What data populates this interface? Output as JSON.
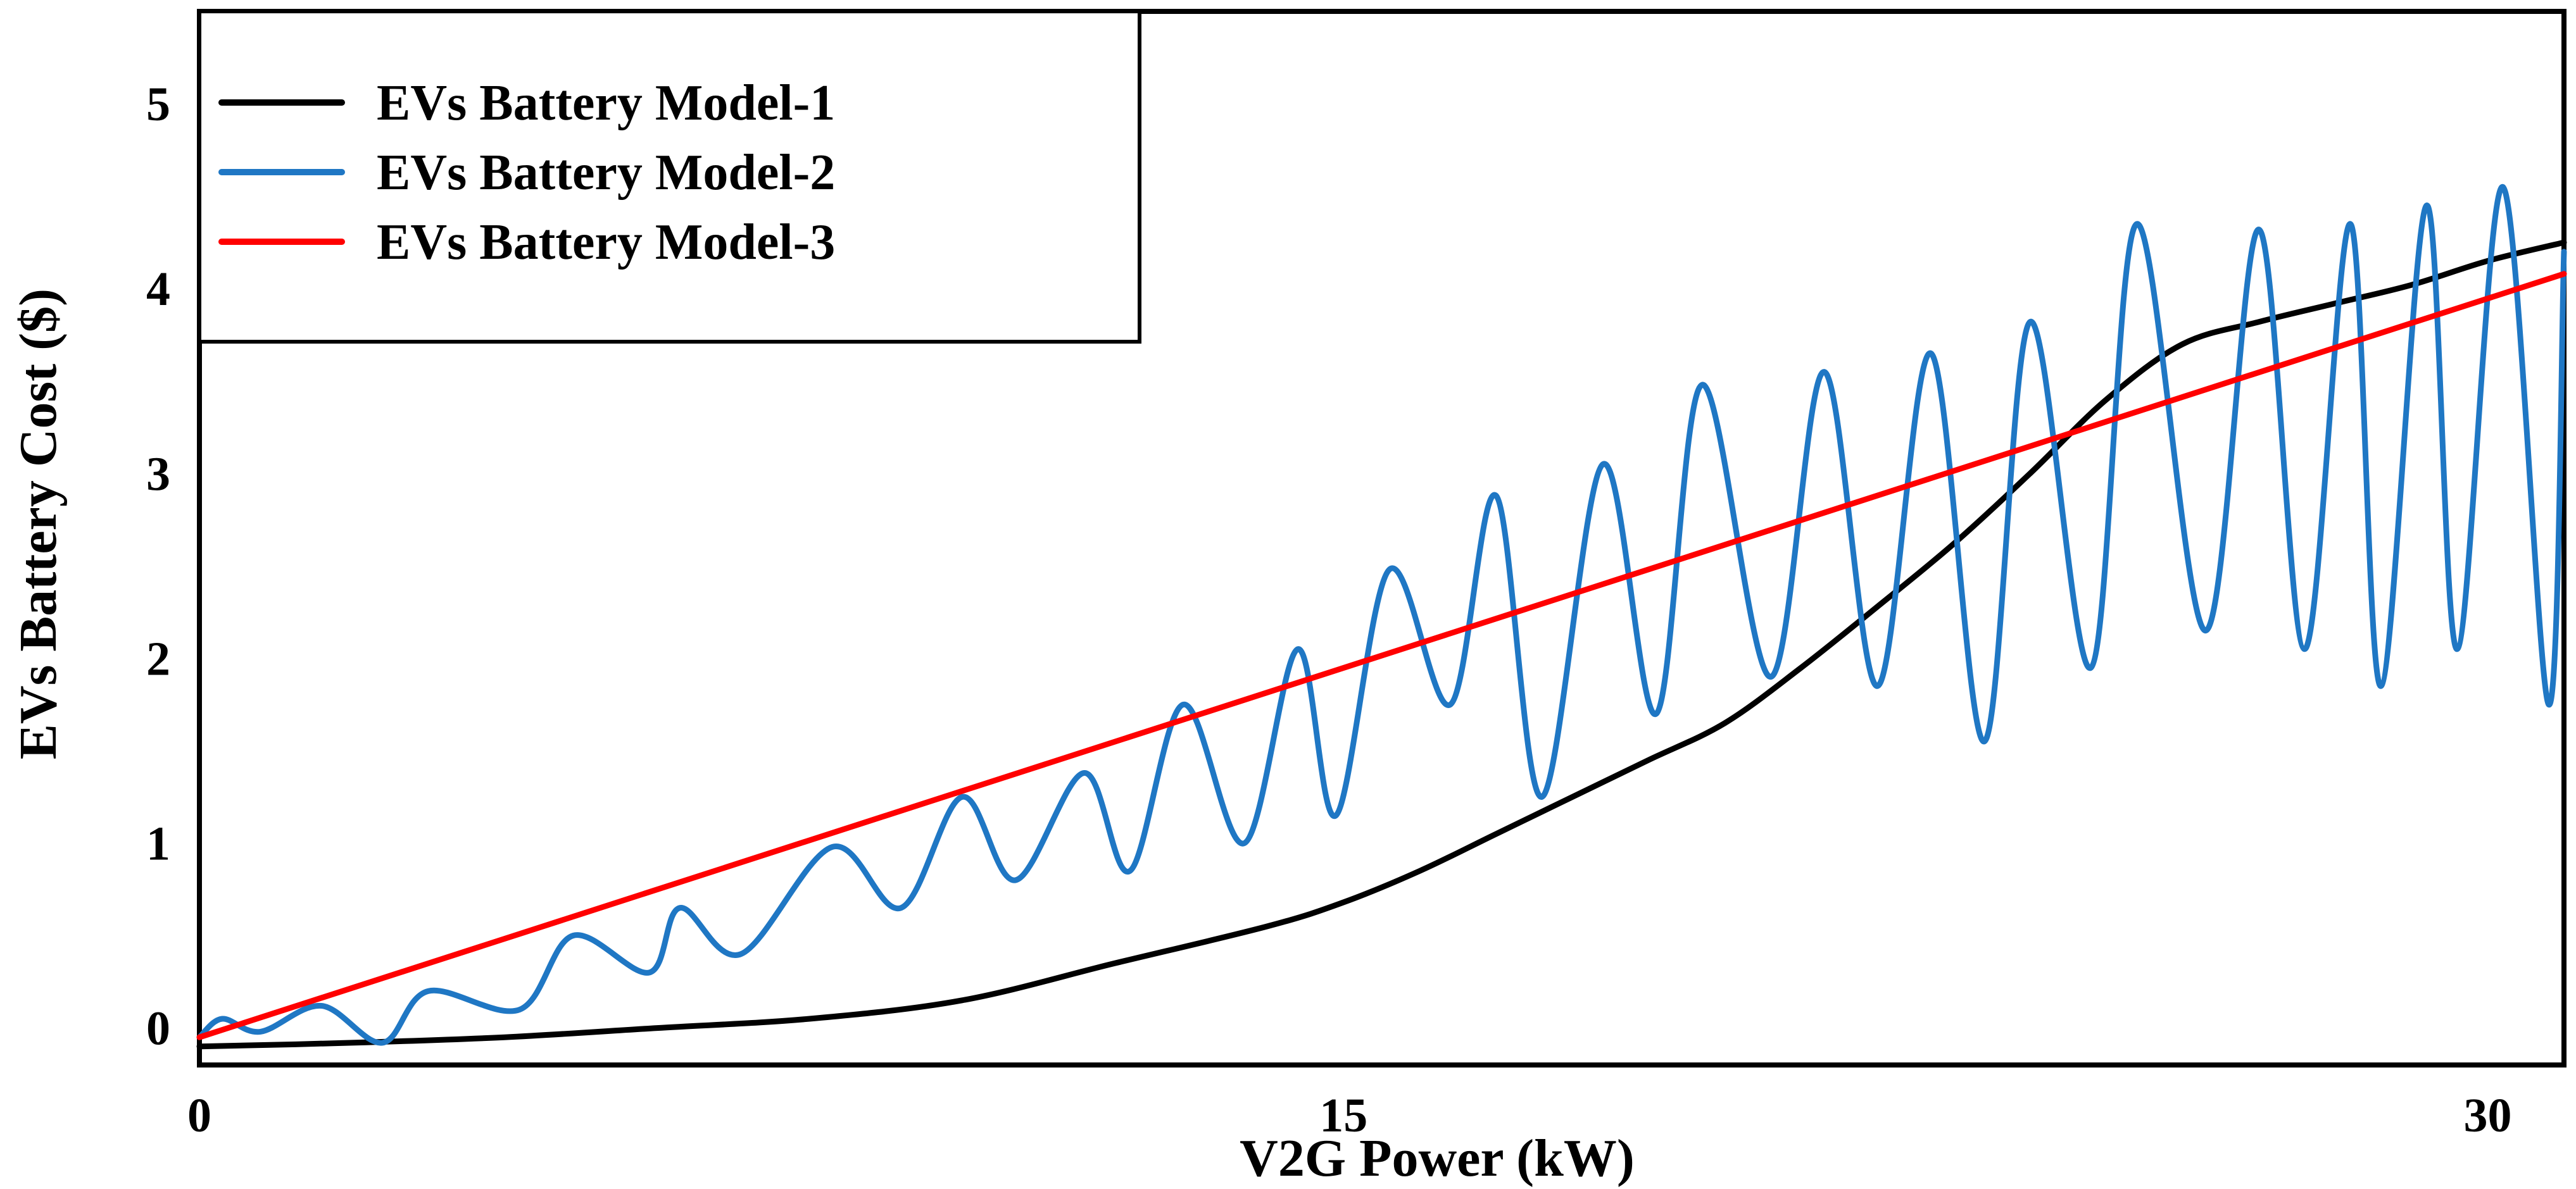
{
  "chart_data": {
    "type": "line",
    "title": "",
    "xlabel": "V2G Power (kW)",
    "ylabel": "EVs Battery Cost ($)",
    "xlim": [
      0,
      31
    ],
    "ylim": [
      -0.2,
      5.5
    ],
    "x_ticks": [
      {
        "value": 0,
        "label": "0"
      },
      {
        "value": 15,
        "label": "15"
      },
      {
        "value": 30,
        "label": "30"
      }
    ],
    "y_ticks": [
      {
        "value": 0,
        "label": "0"
      },
      {
        "value": 1,
        "label": "1"
      },
      {
        "value": 2,
        "label": "2"
      },
      {
        "value": 3,
        "label": "3"
      },
      {
        "value": 4,
        "label": "4"
      },
      {
        "value": 5,
        "label": "5"
      }
    ],
    "grid": false,
    "legend_position": "top-left",
    "series": [
      {
        "name": "EVs Battery Model-1",
        "color": "#000000",
        "style": "smooth",
        "x": [
          0,
          2,
          4,
          6,
          8,
          10,
          12,
          14,
          15,
          16,
          17,
          18,
          19,
          20,
          21,
          22,
          23,
          24,
          25,
          26,
          27,
          28,
          29,
          30,
          31
        ],
        "y": [
          -0.1,
          -0.08,
          -0.05,
          0,
          0.05,
          0.15,
          0.35,
          0.55,
          0.68,
          0.85,
          1.05,
          1.25,
          1.45,
          1.65,
          1.95,
          2.28,
          2.62,
          3.0,
          3.4,
          3.7,
          3.82,
          3.92,
          4.02,
          4.15,
          4.25
        ]
      },
      {
        "name": "EVs Battery Model-2",
        "color": "#1f77c4",
        "style": "smooth",
        "x": [
          0,
          0.3,
          0.8,
          1.6,
          2.4,
          3.0,
          4.2,
          4.9,
          5.9,
          6.3,
          7.1,
          8.3,
          9.2,
          10.0,
          10.7,
          11.6,
          12.2,
          12.9,
          13.7,
          14.4,
          14.9,
          15.6,
          16.4,
          17.0,
          17.6,
          18.4,
          19.1,
          19.7,
          20.6,
          21.3,
          22.0,
          22.7,
          23.4,
          24.0,
          24.8,
          25.4,
          26.3,
          27.0,
          27.6,
          28.2,
          28.6,
          29.2,
          29.6,
          30.2,
          30.8,
          31.0
        ],
        "y": [
          -0.05,
          0.05,
          -0.02,
          0.12,
          -0.08,
          0.2,
          0.1,
          0.5,
          0.3,
          0.65,
          0.4,
          0.98,
          0.65,
          1.25,
          0.8,
          1.38,
          0.85,
          1.75,
          1.0,
          2.05,
          1.15,
          2.48,
          1.75,
          2.88,
          1.25,
          3.05,
          1.7,
          3.48,
          1.9,
          3.55,
          1.85,
          3.65,
          1.55,
          3.82,
          1.95,
          4.35,
          2.15,
          4.32,
          2.05,
          4.35,
          1.85,
          4.45,
          2.05,
          4.55,
          1.75,
          4.2
        ]
      },
      {
        "name": "EVs Battery Model-3",
        "color": "#ff0000",
        "style": "straight",
        "x": [
          0,
          31
        ],
        "y": [
          -0.05,
          4.08
        ]
      }
    ]
  }
}
